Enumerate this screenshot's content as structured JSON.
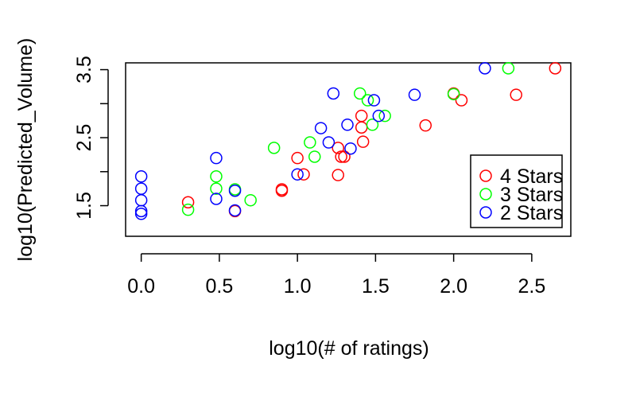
{
  "chart_data": {
    "type": "scatter",
    "xlabel": "log10(# of ratings)",
    "ylabel": "log10(Predicted_Volume)",
    "xlim": [
      -0.1,
      2.75
    ],
    "ylim": [
      1.05,
      3.6
    ],
    "x_ticks": [
      0.0,
      0.5,
      1.0,
      1.5,
      2.0,
      2.5
    ],
    "x_tick_labels": [
      "0.0",
      "0.5",
      "1.0",
      "1.5",
      "2.0",
      "2.5"
    ],
    "y_ticks": [
      1.5,
      2.0,
      2.5,
      3.0,
      3.5
    ],
    "y_tick_labels": [
      "1.5",
      "",
      "2.5",
      "",
      "3.5"
    ],
    "grid": false,
    "legend_position": "bottom-right",
    "series": [
      {
        "name": "4 Stars",
        "color": "#ff0000",
        "x": [
          0.3,
          0.6,
          0.9,
          0.9,
          1.0,
          1.04,
          1.26,
          1.26,
          1.28,
          1.3,
          1.41,
          1.41,
          1.42,
          1.82,
          2.0,
          2.05,
          2.4,
          2.65
        ],
        "y": [
          1.55,
          1.42,
          1.72,
          1.74,
          2.2,
          1.96,
          2.35,
          1.95,
          2.22,
          2.22,
          2.82,
          2.65,
          2.44,
          2.68,
          3.15,
          3.05,
          3.13,
          3.52
        ]
      },
      {
        "name": "3 Stars",
        "color": "#00ff00",
        "x": [
          0.3,
          0.48,
          0.48,
          0.6,
          0.7,
          0.85,
          1.08,
          1.11,
          1.4,
          1.45,
          1.48,
          1.56,
          2.0,
          2.35
        ],
        "y": [
          1.44,
          1.93,
          1.75,
          1.74,
          1.58,
          2.35,
          2.43,
          2.22,
          3.15,
          3.05,
          2.69,
          2.82,
          3.14,
          3.52
        ]
      },
      {
        "name": "2 Stars",
        "color": "#0000ff",
        "x": [
          0.0,
          0.0,
          0.0,
          0.0,
          0.0,
          0.48,
          0.48,
          0.6,
          0.6,
          1.0,
          1.15,
          1.2,
          1.23,
          1.32,
          1.34,
          1.49,
          1.52,
          1.75,
          2.2
        ],
        "y": [
          1.93,
          1.75,
          1.58,
          1.42,
          1.38,
          2.2,
          1.6,
          1.72,
          1.43,
          1.96,
          2.64,
          2.43,
          3.15,
          2.69,
          2.34,
          3.05,
          2.82,
          3.13,
          3.52
        ]
      }
    ]
  }
}
